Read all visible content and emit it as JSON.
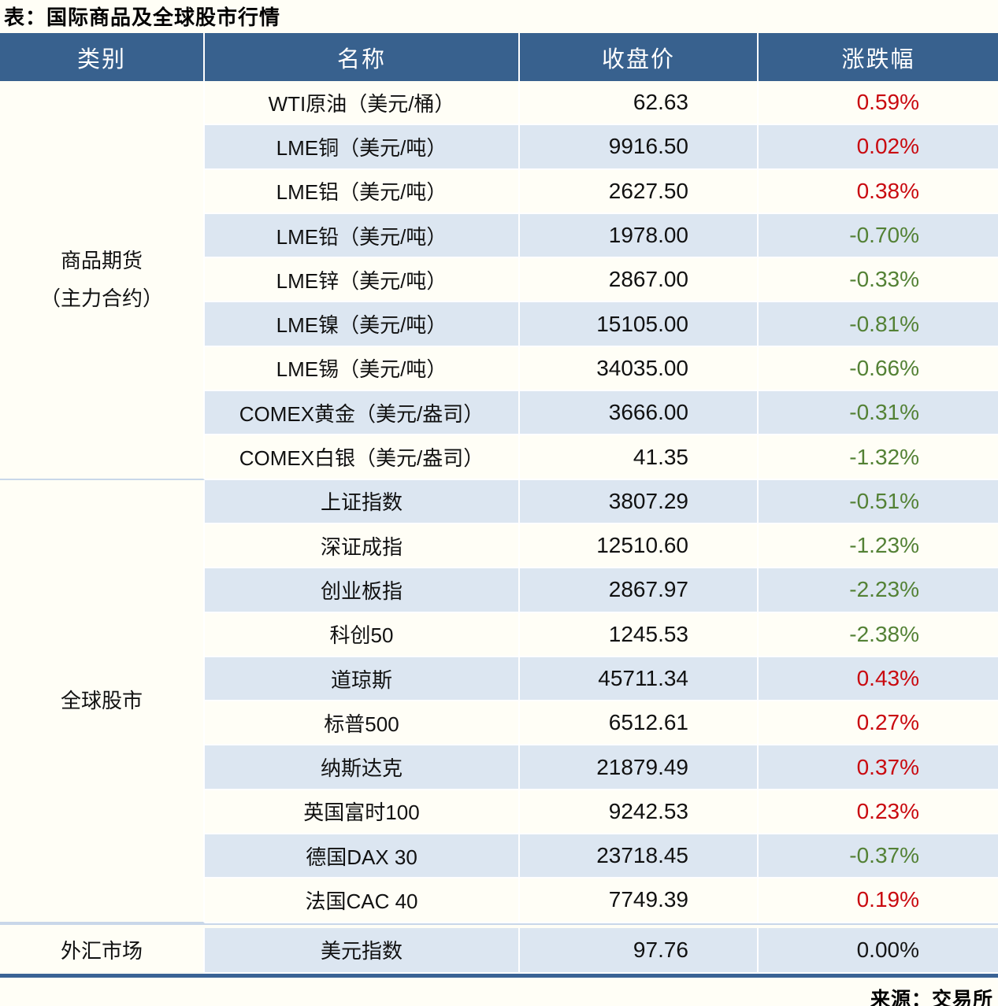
{
  "title": "表：国际商品及全球股市行情",
  "source": "来源：交易所",
  "colors": {
    "header_bg": "#38618E",
    "row_alt": "#DCE6F1",
    "row_base": "#FFFEF6",
    "up": "#C9090F",
    "down": "#538135",
    "divider": "#C9D7E9",
    "bottom_border": "#3A6395"
  },
  "chart_data": {
    "type": "table",
    "title": "国际商品及全球股市行情",
    "columns": [
      "类别",
      "名称",
      "收盘价",
      "涨跌幅"
    ],
    "groups": [
      {
        "category": "商品期货\n（主力合约）",
        "rows": [
          {
            "name": "WTI原油（美元/桶）",
            "close": "62.63",
            "change_pct": "0.59%",
            "trend": "up"
          },
          {
            "name": "LME铜（美元/吨）",
            "close": "9916.50",
            "change_pct": "0.02%",
            "trend": "up"
          },
          {
            "name": "LME铝（美元/吨）",
            "close": "2627.50",
            "change_pct": "0.38%",
            "trend": "up"
          },
          {
            "name": "LME铅（美元/吨）",
            "close": "1978.00",
            "change_pct": "-0.70%",
            "trend": "down"
          },
          {
            "name": "LME锌（美元/吨）",
            "close": "2867.00",
            "change_pct": "-0.33%",
            "trend": "down"
          },
          {
            "name": "LME镍（美元/吨）",
            "close": "15105.00",
            "change_pct": "-0.81%",
            "trend": "down"
          },
          {
            "name": "LME锡（美元/吨）",
            "close": "34035.00",
            "change_pct": "-0.66%",
            "trend": "down"
          },
          {
            "name": "COMEX黄金（美元/盎司）",
            "close": "3666.00",
            "change_pct": "-0.31%",
            "trend": "down"
          },
          {
            "name": "COMEX白银（美元/盎司）",
            "close": "41.35",
            "change_pct": "-1.32%",
            "trend": "down"
          }
        ]
      },
      {
        "category": "全球股市",
        "rows": [
          {
            "name": "上证指数",
            "close": "3807.29",
            "change_pct": "-0.51%",
            "trend": "down"
          },
          {
            "name": "深证成指",
            "close": "12510.60",
            "change_pct": "-1.23%",
            "trend": "down"
          },
          {
            "name": "创业板指",
            "close": "2867.97",
            "change_pct": "-2.23%",
            "trend": "down"
          },
          {
            "name": "科创50",
            "close": "1245.53",
            "change_pct": "-2.38%",
            "trend": "down"
          },
          {
            "name": "道琼斯",
            "close": "45711.34",
            "change_pct": "0.43%",
            "trend": "up"
          },
          {
            "name": "标普500",
            "close": "6512.61",
            "change_pct": "0.27%",
            "trend": "up"
          },
          {
            "name": "纳斯达克",
            "close": "21879.49",
            "change_pct": "0.37%",
            "trend": "up"
          },
          {
            "name": "英国富时100",
            "close": "9242.53",
            "change_pct": "0.23%",
            "trend": "up"
          },
          {
            "name": "德国DAX 30",
            "close": "23718.45",
            "change_pct": "-0.37%",
            "trend": "down"
          },
          {
            "name": "法国CAC 40",
            "close": "7749.39",
            "change_pct": "0.19%",
            "trend": "up"
          }
        ]
      },
      {
        "category": "外汇市场",
        "rows": [
          {
            "name": "美元指数",
            "close": "97.76",
            "change_pct": "0.00%",
            "trend": "flat"
          }
        ]
      }
    ]
  }
}
